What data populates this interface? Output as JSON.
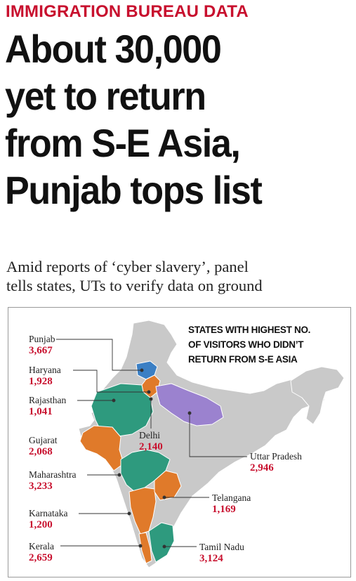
{
  "kicker": "IMMIGRATION BUREAU DATA",
  "headline": {
    "lines": [
      "About 30,000",
      "yet to return",
      "from S-E Asia,",
      "Punjab tops list"
    ]
  },
  "subhead": {
    "lines": [
      "Amid reports of ‘cyber slavery’, panel",
      "tells states, UTs to verify data on ground"
    ]
  },
  "graphic": {
    "title_lines": [
      "STATES WITH HIGHEST NO.",
      "OF VISITORS WHO DIDN’T",
      "RETURN FROM S-E ASIA"
    ],
    "colors": {
      "base_map": "#c9c9c9",
      "punjab": "#3b7fc4",
      "haryana": "#e07a2a",
      "rajasthan": "#2e9a7e",
      "gujarat": "#e07a2a",
      "maharashtra": "#2e9a7e",
      "karnataka": "#e07a2a",
      "kerala": "#e07a2a",
      "tamil_nadu": "#2e9a7e",
      "telangana": "#e07a2a",
      "uttar_pradesh": "#9b82cf",
      "value_text": "#c8102e"
    },
    "states": [
      {
        "name": "Punjab",
        "value": "3,667"
      },
      {
        "name": "Haryana",
        "value": "1,928"
      },
      {
        "name": "Rajasthan",
        "value": "1,041"
      },
      {
        "name": "Gujarat",
        "value": "2,068"
      },
      {
        "name": "Maharashtra",
        "value": "3,233"
      },
      {
        "name": "Karnataka",
        "value": "1,200"
      },
      {
        "name": "Kerala",
        "value": "2,659"
      },
      {
        "name": "Delhi",
        "value": "2,140"
      },
      {
        "name": "Uttar Pradesh",
        "value": "2,946"
      },
      {
        "name": "Telangana",
        "value": "1,169"
      },
      {
        "name": "Tamil Nadu",
        "value": "3,124"
      }
    ]
  }
}
